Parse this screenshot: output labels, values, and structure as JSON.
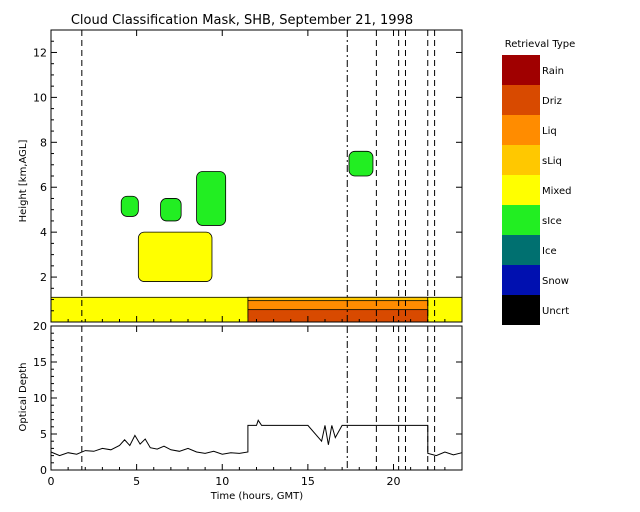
{
  "chart_data": [
    {
      "type": "heatmap",
      "title": "Cloud Classification Mask, SHB, September 21, 1998",
      "ylabel": "Height [km,AGL]",
      "xlim": [
        0,
        24
      ],
      "ylim": [
        0,
        13
      ],
      "yticks": [
        2,
        4,
        6,
        8,
        10,
        12
      ],
      "legend": {
        "title": "Retrieval Type",
        "placement": "right",
        "entries": [
          {
            "label": "Rain",
            "color": "#a00000"
          },
          {
            "label": "Driz",
            "color": "#d84a00"
          },
          {
            "label": "Liq",
            "color": "#ff8c00"
          },
          {
            "label": "sLiq",
            "color": "#ffc800"
          },
          {
            "label": "Mixed",
            "color": "#ffff00"
          },
          {
            "label": "sIce",
            "color": "#22ee22"
          },
          {
            "label": "Ice",
            "color": "#007070"
          },
          {
            "label": "Snow",
            "color": "#0010b0"
          },
          {
            "label": "Uncrt",
            "color": "#000000"
          }
        ]
      },
      "regions": [
        {
          "type": "Mixed",
          "color": "#ffff00",
          "t0": 0,
          "t1": 24,
          "z0": 0,
          "z1": 1.1
        },
        {
          "type": "sLiq",
          "color": "#ffc800",
          "t0": 11.5,
          "t1": 22,
          "z0": 0.5,
          "z1": 1.1
        },
        {
          "type": "Liq",
          "color": "#ff8c00",
          "t0": 11.5,
          "t1": 22,
          "z0": 0.2,
          "z1": 0.95
        },
        {
          "type": "Driz",
          "color": "#d84a00",
          "t0": 11.5,
          "t1": 22,
          "z0": 0,
          "z1": 0.55
        },
        {
          "type": "Mixed",
          "color": "#ffff00",
          "t0": 5.1,
          "t1": 9.4,
          "z0": 1.8,
          "z1": 4.0
        },
        {
          "type": "sIce",
          "color": "#22ee22",
          "t0": 4.1,
          "t1": 5.1,
          "z0": 4.7,
          "z1": 5.6
        },
        {
          "type": "sIce",
          "color": "#22ee22",
          "t0": 6.4,
          "t1": 7.6,
          "z0": 4.5,
          "z1": 5.5
        },
        {
          "type": "sIce",
          "color": "#22ee22",
          "t0": 8.5,
          "t1": 10.2,
          "z0": 4.3,
          "z1": 6.7
        },
        {
          "type": "sIce",
          "color": "#22ee22",
          "t0": 17.4,
          "t1": 18.8,
          "z0": 6.5,
          "z1": 7.6
        }
      ],
      "vlines": [
        {
          "x": 1.8,
          "style": "dash"
        },
        {
          "x": 17.3,
          "style": "dashdot"
        },
        {
          "x": 19.0,
          "style": "dash"
        },
        {
          "x": 20.3,
          "style": "dash"
        },
        {
          "x": 20.7,
          "style": "dash"
        },
        {
          "x": 22.0,
          "style": "dash"
        },
        {
          "x": 22.4,
          "style": "dash"
        }
      ]
    },
    {
      "type": "line",
      "ylabel": "Optical Depth",
      "xlabel": "Time (hours, GMT)",
      "xlim": [
        0,
        24
      ],
      "ylim": [
        0,
        20
      ],
      "xticks": [
        0,
        5,
        10,
        15,
        20
      ],
      "yticks": [
        0,
        5,
        10,
        15,
        20
      ],
      "series": [
        {
          "x": [
            0,
            0.5,
            1,
            1.5,
            2,
            2.5,
            3,
            3.5,
            4,
            4.3,
            4.6,
            4.9,
            5.2,
            5.5,
            5.8,
            6.2,
            6.6,
            7,
            7.5,
            8,
            8.5,
            9,
            9.5,
            10,
            10.5,
            11,
            11.5,
            11.5,
            12,
            12.1,
            12.3,
            13,
            14,
            15,
            15.8,
            16.0,
            16.2,
            16.4,
            16.6,
            17,
            18,
            19,
            20,
            21,
            22,
            22,
            22.5,
            23,
            23.5,
            24
          ],
          "y": [
            2.5,
            2.0,
            2.4,
            2.2,
            2.7,
            2.6,
            3.0,
            2.8,
            3.4,
            4.2,
            3.4,
            4.8,
            3.6,
            4.3,
            3.1,
            2.9,
            3.3,
            2.8,
            2.6,
            3.0,
            2.5,
            2.3,
            2.6,
            2.2,
            2.4,
            2.3,
            2.5,
            6.2,
            6.2,
            6.9,
            6.2,
            6.2,
            6.2,
            6.2,
            4.0,
            6.2,
            3.5,
            6.2,
            4.5,
            6.2,
            6.2,
            6.2,
            6.2,
            6.2,
            6.2,
            2.3,
            2.0,
            2.5,
            2.1,
            2.4
          ]
        }
      ],
      "vlines": [
        {
          "x": 1.8,
          "style": "dash"
        },
        {
          "x": 17.3,
          "style": "dashdot"
        },
        {
          "x": 19.0,
          "style": "dash"
        },
        {
          "x": 20.3,
          "style": "dash"
        },
        {
          "x": 20.7,
          "style": "dash"
        },
        {
          "x": 22.0,
          "style": "dash"
        },
        {
          "x": 22.4,
          "style": "dash"
        }
      ]
    }
  ]
}
